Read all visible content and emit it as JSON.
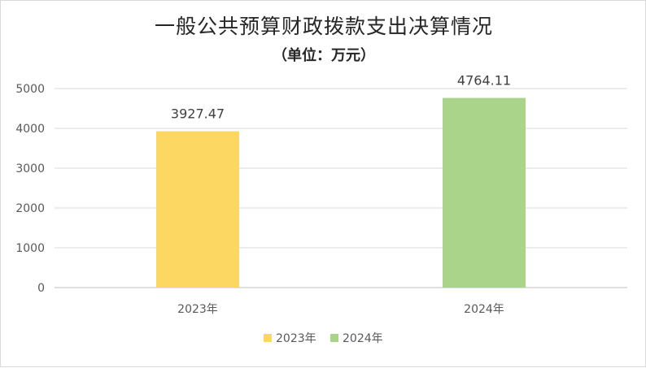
{
  "chart_data": {
    "type": "bar",
    "title": "一般公共预算财政拨款支出决算情况",
    "subtitle": "（单位：万元）",
    "categories": [
      "2023年",
      "2024年"
    ],
    "values": [
      3927.47,
      4764.11
    ],
    "data_labels": [
      "3927.47",
      "4764.11"
    ],
    "colors": [
      "#FCD762",
      "#A9D48A"
    ],
    "ylim": [
      0,
      5000
    ],
    "yticks": [
      0,
      1000,
      2000,
      3000,
      4000,
      5000
    ],
    "grid": true,
    "legend": {
      "placement": "bottom",
      "items": [
        {
          "label": "2023年",
          "color": "#FCD762"
        },
        {
          "label": "2024年",
          "color": "#A9D48A"
        }
      ]
    }
  }
}
